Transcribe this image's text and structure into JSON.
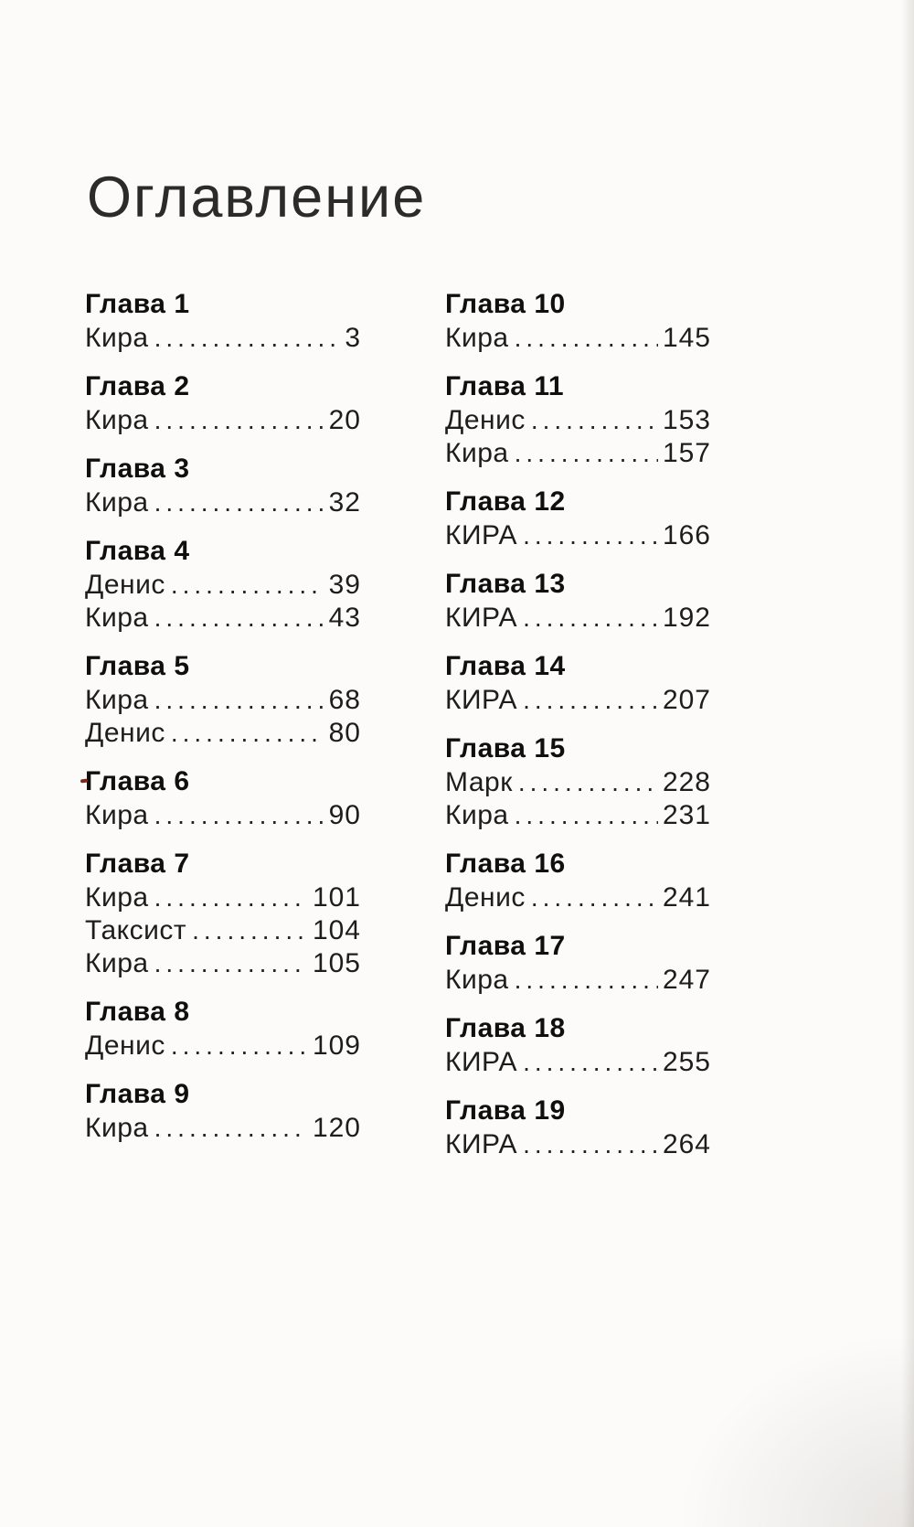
{
  "page": {
    "title": "Оглавление"
  },
  "colors": {
    "background": "#fcfbf9",
    "ink": "#1d1d1b",
    "heading_ink": "#0f0f0d"
  },
  "toc": {
    "columns": [
      {
        "chapters": [
          {
            "heading": "Глава 1",
            "entries": [
              {
                "name": "Кира",
                "page": "3"
              }
            ]
          },
          {
            "heading": "Глава 2",
            "entries": [
              {
                "name": "Кира",
                "page": "20"
              }
            ]
          },
          {
            "heading": "Глава 3",
            "entries": [
              {
                "name": "Кира",
                "page": "32"
              }
            ]
          },
          {
            "heading": "Глава 4",
            "entries": [
              {
                "name": "Денис",
                "page": "39"
              },
              {
                "name": "Кира",
                "page": "43"
              }
            ]
          },
          {
            "heading": "Глава 5",
            "entries": [
              {
                "name": "Кира",
                "page": "68"
              },
              {
                "name": "Денис",
                "page": "80"
              }
            ]
          },
          {
            "heading": "Глава 6",
            "entries": [
              {
                "name": "Кира",
                "page": "90"
              }
            ]
          },
          {
            "heading": "Глава 7",
            "entries": [
              {
                "name": "Кира",
                "page": "101"
              },
              {
                "name": "Таксист",
                "page": "104"
              },
              {
                "name": "Кира",
                "page": "105"
              }
            ]
          },
          {
            "heading": "Глава 8",
            "entries": [
              {
                "name": "Денис",
                "page": "109"
              }
            ]
          },
          {
            "heading": "Глава 9",
            "entries": [
              {
                "name": "Кира",
                "page": "120"
              }
            ]
          }
        ]
      },
      {
        "chapters": [
          {
            "heading": "Глава 10",
            "entries": [
              {
                "name": "Кира",
                "page": "145"
              }
            ]
          },
          {
            "heading": "Глава 11",
            "entries": [
              {
                "name": "Денис",
                "page": "153"
              },
              {
                "name": "Кира",
                "page": "157"
              }
            ]
          },
          {
            "heading": "Глава 12",
            "entries": [
              {
                "name": "КИРА",
                "page": "166"
              }
            ]
          },
          {
            "heading": "Глава 13",
            "entries": [
              {
                "name": "КИРА",
                "page": "192"
              }
            ]
          },
          {
            "heading": "Глава 14",
            "entries": [
              {
                "name": "КИРА",
                "page": "207"
              }
            ]
          },
          {
            "heading": "Глава 15",
            "entries": [
              {
                "name": "Марк",
                "page": "228"
              },
              {
                "name": "Кира",
                "page": "231"
              }
            ]
          },
          {
            "heading": "Глава 16",
            "entries": [
              {
                "name": "Денис",
                "page": "241"
              }
            ]
          },
          {
            "heading": "Глава 17",
            "entries": [
              {
                "name": "Кира",
                "page": "247"
              }
            ]
          },
          {
            "heading": "Глава 18",
            "entries": [
              {
                "name": "КИРА",
                "page": "255"
              }
            ]
          },
          {
            "heading": "Глава 19",
            "entries": [
              {
                "name": "КИРА",
                "page": "264"
              }
            ]
          }
        ]
      }
    ]
  }
}
